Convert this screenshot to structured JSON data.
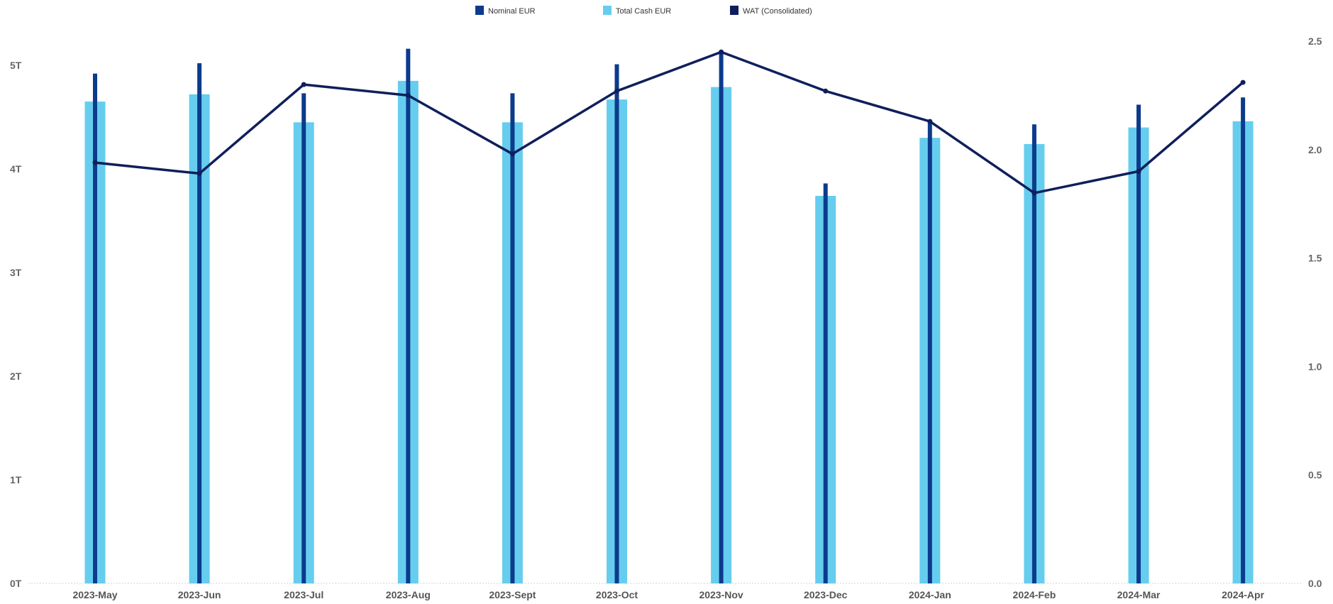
{
  "chart_data": {
    "type": "bar",
    "title": "",
    "categories": [
      "2023-May",
      "2023-Jun",
      "2023-Jul",
      "2023-Aug",
      "2023-Sept",
      "2023-Oct",
      "2023-Nov",
      "2023-Dec",
      "2024-Jan",
      "2024-Feb",
      "2024-Mar",
      "2024-Apr"
    ],
    "series": [
      {
        "name": "Nominal EUR",
        "type": "bar",
        "axis": "left",
        "color": "#0c3b8c",
        "values": [
          4.92,
          5.02,
          4.73,
          5.16,
          4.73,
          5.01,
          5.11,
          3.86,
          4.45,
          4.43,
          4.62,
          4.69
        ]
      },
      {
        "name": "Total Cash EUR",
        "type": "bar",
        "axis": "left",
        "color": "#66cdee",
        "values": [
          4.65,
          4.72,
          4.45,
          4.85,
          4.45,
          4.67,
          4.79,
          3.74,
          4.3,
          4.24,
          4.4,
          4.46
        ]
      },
      {
        "name": "WAT (Consolidated)",
        "type": "line",
        "axis": "right",
        "color": "#0f1f5c",
        "values": [
          1.94,
          1.89,
          2.3,
          2.25,
          1.98,
          2.27,
          2.45,
          2.27,
          2.13,
          1.8,
          1.9,
          2.31
        ]
      }
    ],
    "y_left": {
      "ticks": [
        0,
        1,
        2,
        3,
        4,
        5
      ],
      "tick_labels": [
        "0T",
        "1T",
        "2T",
        "3T",
        "4T",
        "5T"
      ],
      "range": [
        0,
        5.05
      ]
    },
    "y_right": {
      "ticks": [
        0,
        0.5,
        1,
        1.5,
        2,
        2.5
      ],
      "tick_labels": [
        "0.0",
        "0.5",
        "1.0",
        "1.5",
        "2.0",
        "2.5"
      ],
      "range": [
        0,
        2.5
      ]
    },
    "xlabel": "",
    "ylabel": "",
    "grid": false,
    "legend_position": "top-center"
  }
}
